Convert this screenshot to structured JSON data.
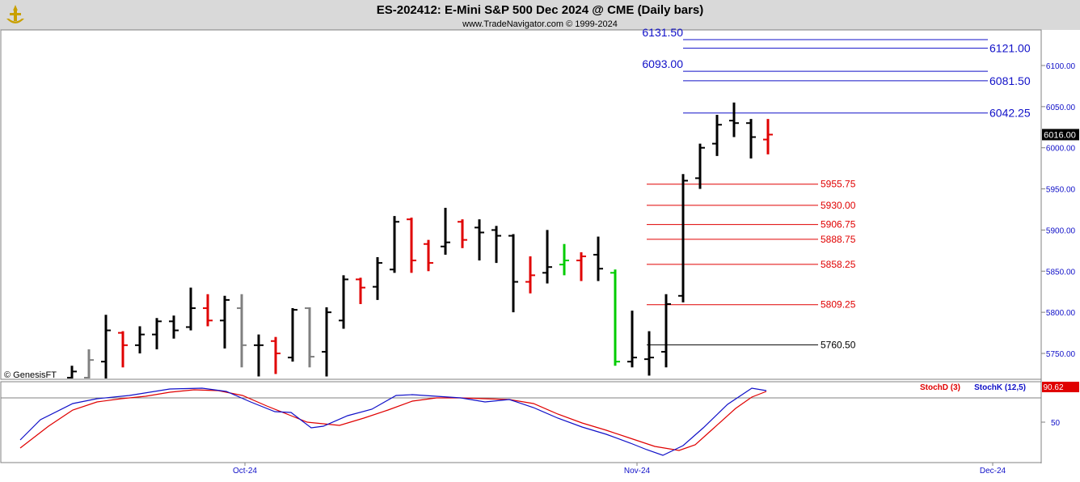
{
  "header": {
    "title": "ES-202412:  E-Mini S&P 500 Dec 2024 @ CME  (Daily bars)",
    "subtitle": "www.TradeNavigator.com © 1999-2024",
    "watermark": "© GenesisFT"
  },
  "colors": {
    "header_bg": "#d9d9d9",
    "up_bar": "#000000",
    "down_bar": "#e00000",
    "gray_bar": "#808080",
    "green_bar": "#00cc00",
    "blue_level": "#1010c8",
    "red_level": "#e00000",
    "black_level": "#000000",
    "stochD": "#e00000",
    "stochK": "#1010c8",
    "last_price_bg": "#000000"
  },
  "chart_data": [
    {
      "type": "ohlc",
      "panel": "price",
      "y_ticks": [
        5750,
        5800,
        5850,
        5900,
        5950,
        6000,
        6050,
        6100
      ],
      "y_tick_labels": [
        "5750.00",
        "5800.00",
        "5850.00",
        "5900.00",
        "5950.00",
        "6000.00",
        "6050.00",
        "6100.00"
      ],
      "ylim": [
        5718,
        6150
      ],
      "x_labels": [
        "Oct-24",
        "Nov-24",
        "Dec-24"
      ],
      "last_price": 6016,
      "last_price_label": "6016.00",
      "bars": [
        {
          "x": 89,
          "o": 5720,
          "h": 5735,
          "l": 5718,
          "c": 5728,
          "col": "black"
        },
        {
          "x": 110,
          "o": 5720,
          "h": 5755,
          "l": 5718,
          "c": 5742,
          "col": "gray"
        },
        {
          "x": 131,
          "o": 5740,
          "h": 5797,
          "l": 5718,
          "c": 5778,
          "col": "black"
        },
        {
          "x": 152,
          "o": 5775,
          "h": 5777,
          "l": 5733,
          "c": 5760,
          "col": "red"
        },
        {
          "x": 173,
          "o": 5760,
          "h": 5783,
          "l": 5750,
          "c": 5773,
          "col": "black"
        },
        {
          "x": 194,
          "o": 5773,
          "h": 5793,
          "l": 5755,
          "c": 5789,
          "col": "black"
        },
        {
          "x": 215,
          "o": 5789,
          "h": 5796,
          "l": 5768,
          "c": 5778,
          "col": "black"
        },
        {
          "x": 236,
          "o": 5782,
          "h": 5830,
          "l": 5778,
          "c": 5805,
          "col": "black"
        },
        {
          "x": 257,
          "o": 5805,
          "h": 5822,
          "l": 5783,
          "c": 5790,
          "col": "red"
        },
        {
          "x": 278,
          "o": 5790,
          "h": 5820,
          "l": 5756,
          "c": 5815,
          "col": "black"
        },
        {
          "x": 299,
          "o": 5805,
          "h": 5822,
          "l": 5733,
          "c": 5760,
          "col": "gray"
        },
        {
          "x": 320,
          "o": 5760,
          "h": 5773,
          "l": 5722,
          "c": 5760,
          "col": "black"
        },
        {
          "x": 341,
          "o": 5765,
          "h": 5770,
          "l": 5725,
          "c": 5750,
          "col": "red"
        },
        {
          "x": 362,
          "o": 5745,
          "h": 5805,
          "l": 5740,
          "c": 5803,
          "col": "black"
        },
        {
          "x": 383,
          "o": 5805,
          "h": 5806,
          "l": 5733,
          "c": 5746,
          "col": "gray"
        },
        {
          "x": 404,
          "o": 5752,
          "h": 5806,
          "l": 5722,
          "c": 5800,
          "col": "black"
        },
        {
          "x": 425,
          "o": 5790,
          "h": 5845,
          "l": 5780,
          "c": 5840,
          "col": "black"
        },
        {
          "x": 446,
          "o": 5840,
          "h": 5842,
          "l": 5810,
          "c": 5830,
          "col": "red"
        },
        {
          "x": 467,
          "o": 5831,
          "h": 5867,
          "l": 5815,
          "c": 5860,
          "col": "black"
        },
        {
          "x": 488,
          "o": 5852,
          "h": 5917,
          "l": 5848,
          "c": 5910,
          "col": "black"
        },
        {
          "x": 509,
          "o": 5913,
          "h": 5915,
          "l": 5848,
          "c": 5863,
          "col": "red"
        },
        {
          "x": 530,
          "o": 5883,
          "h": 5888,
          "l": 5850,
          "c": 5860,
          "col": "red"
        },
        {
          "x": 551,
          "o": 5880,
          "h": 5927,
          "l": 5870,
          "c": 5885,
          "col": "black"
        },
        {
          "x": 572,
          "o": 5910,
          "h": 5913,
          "l": 5878,
          "c": 5888,
          "col": "red"
        },
        {
          "x": 593,
          "o": 5903,
          "h": 5913,
          "l": 5863,
          "c": 5897,
          "col": "black"
        },
        {
          "x": 614,
          "o": 5900,
          "h": 5905,
          "l": 5860,
          "c": 5893,
          "col": "black"
        },
        {
          "x": 635,
          "o": 5893,
          "h": 5895,
          "l": 5800,
          "c": 5837,
          "col": "black"
        },
        {
          "x": 656,
          "o": 5837,
          "h": 5868,
          "l": 5823,
          "c": 5845,
          "col": "red"
        },
        {
          "x": 677,
          "o": 5848,
          "h": 5900,
          "l": 5835,
          "c": 5855,
          "col": "black"
        },
        {
          "x": 698,
          "o": 5858,
          "h": 5883,
          "l": 5845,
          "c": 5863,
          "col": "green"
        },
        {
          "x": 719,
          "o": 5863,
          "h": 5873,
          "l": 5838,
          "c": 5868,
          "col": "red"
        },
        {
          "x": 740,
          "o": 5870,
          "h": 5892,
          "l": 5838,
          "c": 5853,
          "col": "black"
        },
        {
          "x": 761,
          "o": 5848,
          "h": 5852,
          "l": 5735,
          "c": 5740,
          "col": "green"
        },
        {
          "x": 782,
          "o": 5740,
          "h": 5802,
          "l": 5733,
          "c": 5745,
          "col": "black"
        },
        {
          "x": 803,
          "o": 5743,
          "h": 5777,
          "l": 5723,
          "c": 5745,
          "col": "black"
        },
        {
          "x": 824,
          "o": 5752,
          "h": 5822,
          "l": 5733,
          "c": 5810,
          "col": "black"
        },
        {
          "x": 845,
          "o": 5820,
          "h": 5968,
          "l": 5812,
          "c": 5960,
          "col": "black"
        },
        {
          "x": 866,
          "o": 5963,
          "h": 6005,
          "l": 5950,
          "c": 6000,
          "col": "black"
        },
        {
          "x": 887,
          "o": 6005,
          "h": 6040,
          "l": 5990,
          "c": 6028,
          "col": "black"
        },
        {
          "x": 908,
          "o": 6033,
          "h": 6055,
          "l": 6013,
          "c": 6030,
          "col": "black"
        },
        {
          "x": 929,
          "o": 6030,
          "h": 6035,
          "l": 5987,
          "c": 6013,
          "col": "black"
        },
        {
          "x": 950,
          "o": 6010,
          "h": 6035,
          "l": 5992,
          "c": 6016,
          "col": "red"
        }
      ],
      "levels": [
        {
          "value": 6131.5,
          "label": "6131.50",
          "color": "blue",
          "x1": 845,
          "x2": 1222,
          "label_side": "left",
          "size": "big"
        },
        {
          "value": 6121.0,
          "label": "6121.00",
          "color": "blue",
          "x1": 845,
          "x2": 1222,
          "label_side": "right",
          "size": "big"
        },
        {
          "value": 6093.0,
          "label": "6093.00",
          "color": "blue",
          "x1": 845,
          "x2": 1222,
          "label_side": "left",
          "size": "big"
        },
        {
          "value": 6081.5,
          "label": "6081.50",
          "color": "blue",
          "x1": 845,
          "x2": 1222,
          "label_side": "right",
          "size": "big"
        },
        {
          "value": 6042.25,
          "label": "6042.25",
          "color": "blue",
          "x1": 845,
          "x2": 1222,
          "label_side": "right",
          "size": "big"
        },
        {
          "value": 5955.75,
          "label": "5955.75",
          "color": "red",
          "x1": 800,
          "x2": 1012,
          "label_side": "right",
          "size": "small"
        },
        {
          "value": 5930.0,
          "label": "5930.00",
          "color": "red",
          "x1": 800,
          "x2": 1012,
          "label_side": "right",
          "size": "small"
        },
        {
          "value": 5906.75,
          "label": "5906.75",
          "color": "red",
          "x1": 800,
          "x2": 1012,
          "label_side": "right",
          "size": "small"
        },
        {
          "value": 5888.75,
          "label": "5888.75",
          "color": "red",
          "x1": 800,
          "x2": 1012,
          "label_side": "right",
          "size": "small"
        },
        {
          "value": 5858.25,
          "label": "5858.25",
          "color": "red",
          "x1": 800,
          "x2": 1012,
          "label_side": "right",
          "size": "small"
        },
        {
          "value": 5809.25,
          "label": "5809.25",
          "color": "red",
          "x1": 800,
          "x2": 1012,
          "label_side": "right",
          "size": "small"
        },
        {
          "value": 5760.5,
          "label": "5760.50",
          "color": "black",
          "x1": 800,
          "x2": 1012,
          "label_side": "right",
          "size": "small"
        }
      ]
    },
    {
      "type": "line",
      "panel": "stochastic",
      "ylim": [
        0,
        100
      ],
      "y_ticks": [
        50
      ],
      "y_tick_labels": [
        "50"
      ],
      "ref_line": 80,
      "last_value_label": "90.62",
      "series": [
        {
          "name": "StochD (3)",
          "color": "red",
          "points": [
            [
              25,
              18
            ],
            [
              60,
              45
            ],
            [
              90,
              65
            ],
            [
              120,
              75
            ],
            [
              150,
              79
            ],
            [
              180,
              82
            ],
            [
              210,
              87
            ],
            [
              240,
              90
            ],
            [
              270,
              89
            ],
            [
              300,
              83
            ],
            [
              330,
              70
            ],
            [
              360,
              58
            ],
            [
              380,
              50
            ],
            [
              420,
              46
            ],
            [
              450,
              55
            ],
            [
              480,
              65
            ],
            [
              510,
              76
            ],
            [
              540,
              80
            ],
            [
              570,
              80
            ],
            [
              600,
              79
            ],
            [
              630,
              78
            ],
            [
              660,
              73
            ],
            [
              690,
              60
            ],
            [
              720,
              49
            ],
            [
              750,
              40
            ],
            [
              780,
              30
            ],
            [
              810,
              20
            ],
            [
              840,
              15
            ],
            [
              860,
              22
            ],
            [
              880,
              40
            ],
            [
              910,
              67
            ],
            [
              930,
              81
            ],
            [
              948,
              88
            ]
          ]
        },
        {
          "name": "StochK (12,5)",
          "color": "blue",
          "points": [
            [
              25,
              28
            ],
            [
              50,
              53
            ],
            [
              90,
              73
            ],
            [
              120,
              79
            ],
            [
              160,
              83
            ],
            [
              210,
              91
            ],
            [
              250,
              92
            ],
            [
              280,
              88
            ],
            [
              310,
              75
            ],
            [
              340,
              63
            ],
            [
              360,
              62
            ],
            [
              385,
              43
            ],
            [
              400,
              45
            ],
            [
              430,
              58
            ],
            [
              460,
              66
            ],
            [
              490,
              83
            ],
            [
              510,
              84
            ],
            [
              540,
              82
            ],
            [
              570,
              80
            ],
            [
              600,
              75
            ],
            [
              630,
              78
            ],
            [
              660,
              68
            ],
            [
              690,
              55
            ],
            [
              720,
              44
            ],
            [
              750,
              35
            ],
            [
              780,
              24
            ],
            [
              800,
              16
            ],
            [
              820,
              9
            ],
            [
              845,
              21
            ],
            [
              870,
              43
            ],
            [
              900,
              72
            ],
            [
              930,
              92
            ],
            [
              948,
              89
            ]
          ]
        }
      ]
    }
  ]
}
